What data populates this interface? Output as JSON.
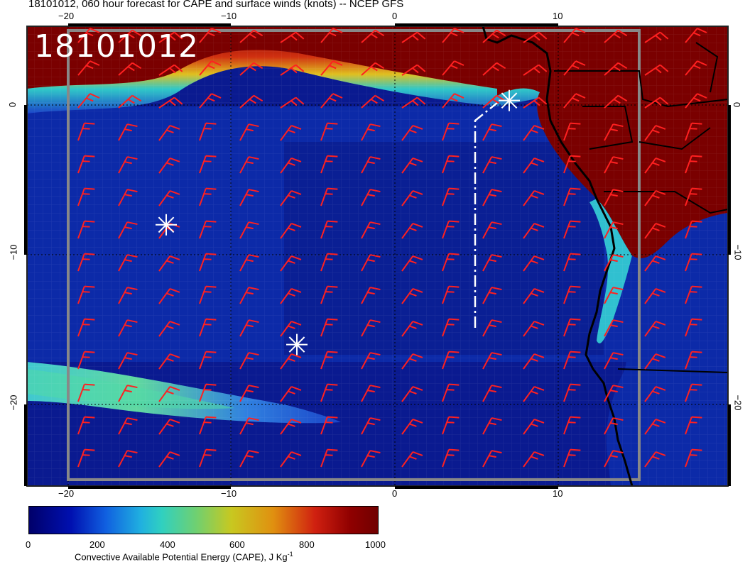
{
  "title": "18101012, 060 hour forecast for CAPE and surface winds (knots) -- NCEP GFS",
  "date_stamp": "18101012",
  "lon_ticks_top": [
    "−20",
    "−10",
    "0",
    "10"
  ],
  "lon_ticks_bottom": [
    "−20",
    "−10",
    "0",
    "10"
  ],
  "lat_ticks_left": [
    "0",
    "−10",
    "−20"
  ],
  "lat_ticks_right": [
    "0",
    "−10",
    "−20"
  ],
  "colorbar": {
    "ticks": [
      "0",
      "200",
      "400",
      "600",
      "800",
      "1000"
    ],
    "label_main": "Convective Available Potential Energy (CAPE), J Kg",
    "label_sup": "-1"
  },
  "colors": {
    "ocean_low": "#00107a",
    "ocean_mid": "#1a44c8",
    "high": "#7a0000",
    "barb": "#ff2020",
    "coast": "#000000",
    "marker": "#ffffff"
  },
  "markers": [
    {
      "name": "star-marker",
      "lon": -14,
      "lat": -8
    },
    {
      "name": "star-marker",
      "lon": -6,
      "lat": -16
    },
    {
      "name": "star-marker",
      "lon": 7,
      "lat": 0.3
    }
  ]
}
